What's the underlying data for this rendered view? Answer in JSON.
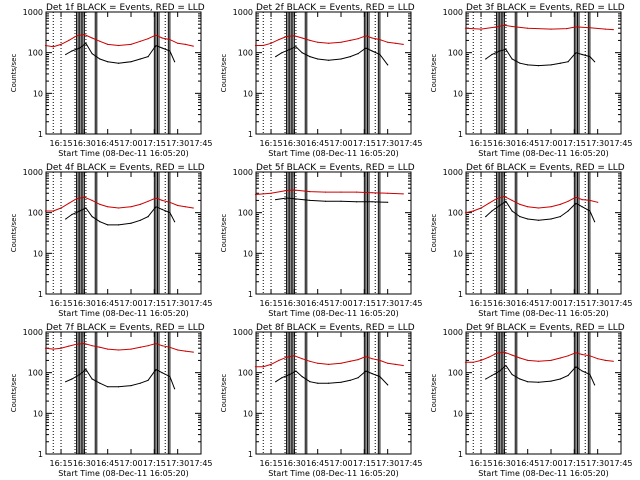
{
  "chart_data": [
    {
      "type": "line",
      "title": "Det 1f BLACK = Events, RED = LLD",
      "ylabel": "Counts/sec",
      "xlabel": "Start Time (08-Dec-11 16:05:20)",
      "ylim": [
        1,
        1000
      ],
      "yscale": "log",
      "xlim": [
        "16:05:20",
        "17:45"
      ],
      "x_ticks": [
        "16:15",
        "16:30",
        "16:45",
        "17:00",
        "17:15",
        "17:30",
        "17:45"
      ],
      "y_ticks": [
        "1",
        "10",
        "100",
        "1000"
      ],
      "series": [
        {
          "color": "#000000",
          "x": [
            "16:10",
            "16:13",
            "16:18",
            "16:22",
            "16:27",
            "16:31",
            "16:35",
            "16:40",
            "16:45",
            "16:52",
            "17:00",
            "17:06",
            "17:11",
            "17:16",
            "17:20",
            "17:25",
            "17:28"
          ],
          "values": [
            null,
            null,
            90,
            110,
            130,
            170,
            95,
            70,
            60,
            55,
            60,
            70,
            80,
            150,
            130,
            110,
            60
          ]
        },
        {
          "color": "#cc0000",
          "x": [
            "16:05",
            "16:10",
            "16:15",
            "16:20",
            "16:25",
            "16:30",
            "16:35",
            "16:40",
            "16:45",
            "16:52",
            "17:00",
            "17:06",
            "17:11",
            "17:16",
            "17:20",
            "17:25",
            "17:30",
            "17:35",
            "17:40"
          ],
          "values": [
            150,
            140,
            160,
            200,
            260,
            280,
            230,
            190,
            160,
            150,
            160,
            190,
            220,
            270,
            230,
            210,
            170,
            160,
            145
          ]
        }
      ]
    },
    {
      "type": "line",
      "title": "Det 2f BLACK = Events, RED = LLD",
      "ylabel": "Counts/sec",
      "xlabel": "Start Time (08-Dec-11 16:05:20)",
      "ylim": [
        1,
        1000
      ],
      "yscale": "log",
      "xlim": [
        "16:05:20",
        "17:45"
      ],
      "x_ticks": [
        "16:15",
        "16:30",
        "16:45",
        "17:00",
        "17:15",
        "17:30",
        "17:45"
      ],
      "y_ticks": [
        "1",
        "10",
        "100",
        "1000"
      ],
      "series": [
        {
          "color": "#000000",
          "x": [
            "16:18",
            "16:22",
            "16:27",
            "16:31",
            "16:35",
            "16:40",
            "16:45",
            "16:52",
            "17:00",
            "17:06",
            "17:11",
            "17:16",
            "17:20",
            "17:25",
            "17:30"
          ],
          "values": [
            80,
            100,
            120,
            140,
            100,
            80,
            70,
            65,
            70,
            80,
            95,
            130,
            110,
            90,
            50
          ]
        },
        {
          "color": "#cc0000",
          "x": [
            "16:05",
            "16:10",
            "16:15",
            "16:20",
            "16:25",
            "16:30",
            "16:35",
            "16:40",
            "16:45",
            "16:52",
            "17:00",
            "17:06",
            "17:11",
            "17:16",
            "17:20",
            "17:25",
            "17:30",
            "17:35",
            "17:40"
          ],
          "values": [
            150,
            150,
            170,
            210,
            250,
            260,
            230,
            200,
            180,
            170,
            180,
            200,
            220,
            260,
            230,
            210,
            180,
            170,
            160
          ]
        }
      ]
    },
    {
      "type": "line",
      "title": "Det 3f BLACK = Events, RED = LLD",
      "ylabel": "Counts/sec",
      "xlabel": "Start Time (08-Dec-11 16:05:20)",
      "ylim": [
        1,
        1000
      ],
      "yscale": "log",
      "xlim": [
        "16:05:20",
        "17:45"
      ],
      "x_ticks": [
        "16:15",
        "16:30",
        "16:45",
        "17:00",
        "17:15",
        "17:30",
        "17:45"
      ],
      "y_ticks": [
        "1",
        "10",
        "100",
        "1000"
      ],
      "series": [
        {
          "color": "#000000",
          "x": [
            "16:13",
            "16:18",
            "16:22",
            "16:27",
            "16:31",
            "16:35",
            "16:40",
            "16:45",
            "16:52",
            "17:00",
            "17:06",
            "17:11",
            "17:16",
            "17:20",
            "17:25",
            "17:28"
          ],
          "values": [
            null,
            70,
            90,
            110,
            120,
            70,
            55,
            50,
            48,
            50,
            55,
            60,
            100,
            90,
            80,
            60
          ]
        },
        {
          "color": "#cc0000",
          "x": [
            "16:05",
            "16:15",
            "16:25",
            "16:30",
            "16:35",
            "16:45",
            "17:00",
            "17:10",
            "17:16",
            "17:25",
            "17:35",
            "17:40"
          ],
          "values": [
            400,
            380,
            430,
            470,
            440,
            400,
            380,
            390,
            430,
            410,
            380,
            370
          ]
        }
      ]
    },
    {
      "type": "line",
      "title": "Det 4f BLACK = Events, RED = LLD",
      "ylabel": "Counts/sec",
      "xlabel": "Start Time (08-Dec-11 16:05:20)",
      "ylim": [
        1,
        1000
      ],
      "yscale": "log",
      "xlim": [
        "16:05:20",
        "17:45"
      ],
      "x_ticks": [
        "16:15",
        "16:30",
        "16:45",
        "17:00",
        "17:15",
        "17:30",
        "17:45"
      ],
      "y_ticks": [
        "1",
        "10",
        "100",
        "1000"
      ],
      "series": [
        {
          "color": "#000000",
          "x": [
            "16:13",
            "16:18",
            "16:22",
            "16:27",
            "16:31",
            "16:35",
            "16:40",
            "16:45",
            "16:52",
            "17:00",
            "17:06",
            "17:11",
            "17:16",
            "17:20",
            "17:25",
            "17:28"
          ],
          "values": [
            null,
            70,
            90,
            110,
            130,
            80,
            60,
            50,
            50,
            55,
            65,
            80,
            140,
            120,
            100,
            60
          ]
        },
        {
          "color": "#cc0000",
          "x": [
            "16:05",
            "16:10",
            "16:15",
            "16:20",
            "16:25",
            "16:30",
            "16:35",
            "16:40",
            "16:45",
            "16:52",
            "17:00",
            "17:06",
            "17:11",
            "17:16",
            "17:20",
            "17:25",
            "17:30",
            "17:35",
            "17:40"
          ],
          "values": [
            110,
            110,
            130,
            170,
            220,
            240,
            200,
            160,
            140,
            130,
            140,
            160,
            190,
            230,
            200,
            180,
            150,
            140,
            130
          ]
        }
      ]
    },
    {
      "type": "line",
      "title": "Det 5f BLACK = Events, RED = LLD",
      "ylabel": "Counts/sec",
      "xlabel": "Start Time (08-Dec-11 16:05:20)",
      "ylim": [
        1,
        1000
      ],
      "yscale": "log",
      "xlim": [
        "16:05:20",
        "17:45"
      ],
      "x_ticks": [
        "16:15",
        "16:30",
        "16:45",
        "17:00",
        "17:15",
        "17:30",
        "17:45"
      ],
      "y_ticks": [
        "1",
        "10",
        "100",
        "1000"
      ],
      "series": [
        {
          "color": "#000000",
          "x": [
            "16:13",
            "16:18",
            "16:25",
            "16:30",
            "16:40",
            "16:50",
            "17:00",
            "17:10",
            "17:20",
            "17:30"
          ],
          "values": [
            null,
            210,
            230,
            220,
            200,
            190,
            190,
            185,
            185,
            180
          ]
        },
        {
          "color": "#cc0000",
          "x": [
            "16:05",
            "16:15",
            "16:25",
            "16:30",
            "16:40",
            "16:50",
            "17:00",
            "17:10",
            "17:20",
            "17:30",
            "17:40"
          ],
          "values": [
            280,
            300,
            350,
            360,
            330,
            320,
            320,
            320,
            310,
            300,
            290
          ]
        }
      ]
    },
    {
      "type": "line",
      "title": "Det 6f BLACK = Events, RED = LLD",
      "ylabel": "Counts/sec",
      "xlabel": "Start Time (08-Dec-11 16:05:20)",
      "ylim": [
        1,
        1000
      ],
      "yscale": "log",
      "xlim": [
        "16:05:20",
        "17:45"
      ],
      "x_ticks": [
        "16:15",
        "16:30",
        "16:45",
        "17:00",
        "17:15",
        "17:30",
        "17:45"
      ],
      "y_ticks": [
        "1",
        "10",
        "100",
        "1000"
      ],
      "series": [
        {
          "color": "#000000",
          "x": [
            "16:13",
            "16:18",
            "16:22",
            "16:27",
            "16:31",
            "16:35",
            "16:40",
            "16:45",
            "16:52",
            "17:00",
            "17:06",
            "17:11",
            "17:16",
            "17:20",
            "17:25",
            "17:28"
          ],
          "values": [
            null,
            80,
            110,
            150,
            190,
            110,
            80,
            70,
            65,
            70,
            80,
            110,
            170,
            140,
            110,
            60
          ]
        },
        {
          "color": "#cc0000",
          "x": [
            "16:05",
            "16:10",
            "16:15",
            "16:20",
            "16:25",
            "16:30",
            "16:35",
            "16:40",
            "16:45",
            "16:52",
            "17:00",
            "17:06",
            "17:11",
            "17:16",
            "17:20",
            "17:25",
            "17:30"
          ],
          "values": [
            100,
            110,
            130,
            170,
            220,
            250,
            200,
            160,
            140,
            130,
            140,
            160,
            190,
            240,
            210,
            200,
            180
          ]
        }
      ]
    },
    {
      "type": "line",
      "title": "Det 7f BLACK = Events, RED = LLD",
      "ylabel": "Counts/sec",
      "xlabel": "Start Time (08-Dec-11 16:05:20)",
      "ylim": [
        1,
        1000
      ],
      "yscale": "log",
      "xlim": [
        "16:05:20",
        "17:45"
      ],
      "x_ticks": [
        "16:15",
        "16:30",
        "16:45",
        "17:00",
        "17:15",
        "17:30",
        "17:45"
      ],
      "y_ticks": [
        "1",
        "10",
        "100",
        "1000"
      ],
      "series": [
        {
          "color": "#000000",
          "x": [
            "16:18",
            "16:22",
            "16:27",
            "16:31",
            "16:35",
            "16:40",
            "16:45",
            "16:52",
            "17:00",
            "17:06",
            "17:11",
            "17:16",
            "17:20",
            "17:25",
            "17:28"
          ],
          "values": [
            60,
            70,
            90,
            120,
            70,
            55,
            45,
            45,
            48,
            55,
            65,
            120,
            100,
            80,
            40
          ]
        },
        {
          "color": "#cc0000",
          "x": [
            "16:05",
            "16:10",
            "16:15",
            "16:20",
            "16:25",
            "16:30",
            "16:35",
            "16:40",
            "16:45",
            "16:52",
            "17:00",
            "17:06",
            "17:11",
            "17:16",
            "17:20",
            "17:25",
            "17:30",
            "17:35",
            "17:40"
          ],
          "values": [
            400,
            380,
            400,
            450,
            500,
            520,
            460,
            420,
            380,
            360,
            380,
            420,
            460,
            520,
            460,
            420,
            360,
            340,
            320
          ]
        }
      ]
    },
    {
      "type": "line",
      "title": "Det 8f BLACK = Events, RED = LLD",
      "ylabel": "Counts/sec",
      "xlabel": "Start Time (08-Dec-11 16:05:20)",
      "ylim": [
        1,
        1000
      ],
      "yscale": "log",
      "xlim": [
        "16:05:20",
        "17:45"
      ],
      "x_ticks": [
        "16:15",
        "16:30",
        "16:45",
        "17:00",
        "17:15",
        "17:30",
        "17:45"
      ],
      "y_ticks": [
        "1",
        "10",
        "100",
        "1000"
      ],
      "series": [
        {
          "color": "#000000",
          "x": [
            "16:18",
            "16:22",
            "16:27",
            "16:31",
            "16:35",
            "16:40",
            "16:45",
            "16:52",
            "17:00",
            "17:06",
            "17:11",
            "17:16",
            "17:20",
            "17:25",
            "17:30"
          ],
          "values": [
            60,
            75,
            90,
            110,
            80,
            60,
            55,
            55,
            58,
            65,
            75,
            110,
            95,
            80,
            50
          ]
        },
        {
          "color": "#cc0000",
          "x": [
            "16:05",
            "16:10",
            "16:15",
            "16:20",
            "16:25",
            "16:30",
            "16:35",
            "16:40",
            "16:45",
            "16:52",
            "17:00",
            "17:06",
            "17:11",
            "17:16",
            "17:20",
            "17:25",
            "17:30",
            "17:35",
            "17:40"
          ],
          "values": [
            140,
            140,
            160,
            200,
            240,
            260,
            220,
            190,
            170,
            160,
            170,
            190,
            210,
            250,
            220,
            200,
            170,
            160,
            150
          ]
        }
      ]
    },
    {
      "type": "line",
      "title": "Det 9f BLACK = Events, RED = LLD",
      "ylabel": "Counts/sec",
      "xlabel": "Start Time (08-Dec-11 16:05:20)",
      "ylim": [
        1,
        1000
      ],
      "yscale": "log",
      "xlim": [
        "16:05:20",
        "17:45"
      ],
      "x_ticks": [
        "16:15",
        "16:30",
        "16:45",
        "17:00",
        "17:15",
        "17:30",
        "17:45"
      ],
      "y_ticks": [
        "1",
        "10",
        "100",
        "1000"
      ],
      "series": [
        {
          "color": "#000000",
          "x": [
            "16:18",
            "16:22",
            "16:27",
            "16:31",
            "16:35",
            "16:40",
            "16:45",
            "16:52",
            "17:00",
            "17:06",
            "17:11",
            "17:16",
            "17:20",
            "17:25",
            "17:28"
          ],
          "values": [
            70,
            85,
            110,
            150,
            90,
            70,
            60,
            58,
            62,
            70,
            85,
            140,
            110,
            90,
            50
          ]
        },
        {
          "color": "#cc0000",
          "x": [
            "16:05",
            "16:10",
            "16:15",
            "16:20",
            "16:25",
            "16:30",
            "16:35",
            "16:40",
            "16:45",
            "16:52",
            "17:00",
            "17:06",
            "17:11",
            "17:16",
            "17:20",
            "17:25",
            "17:30",
            "17:35",
            "17:40"
          ],
          "values": [
            180,
            180,
            200,
            240,
            300,
            320,
            270,
            230,
            200,
            190,
            200,
            230,
            260,
            310,
            280,
            260,
            220,
            200,
            190
          ]
        }
      ]
    }
  ]
}
